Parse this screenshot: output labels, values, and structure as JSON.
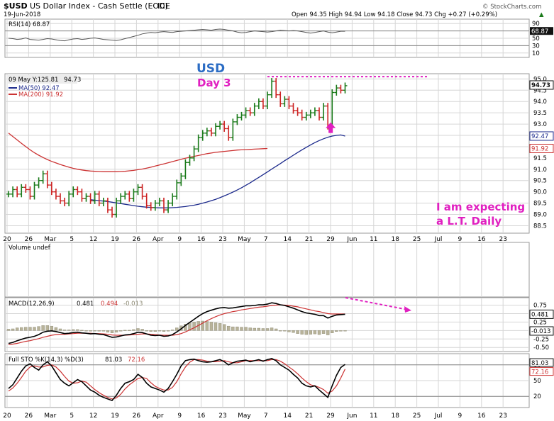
{
  "header": {
    "symbol": "$USD",
    "name": "US Dollar Index - Cash Settle (EOD)",
    "exchange": "ICE",
    "date": "19-Jun-2018",
    "ohlc_text": "Open 94.35  High 94.94  Low 94.18  Close 94.73  Chg +0.27 (+0.29%)",
    "trend_arrow": "▲",
    "watermark": "© StockCharts.com"
  },
  "colors": {
    "up": "#1a7a1a",
    "down": "#cc2222",
    "ma50": "#1c2a8c",
    "ma200": "#cc3333",
    "annotation_blue": "#2b6cc4",
    "annotation_magenta": "#e020c0",
    "macd": "#000000",
    "signal": "#cc3333",
    "histogram": "#b8b39a"
  },
  "chart_data": [
    {
      "type": "line",
      "name": "rsi_panel",
      "title": "RSI(14) 68.87",
      "ylim": [
        0,
        100
      ],
      "yticks": [
        "90",
        "70",
        "50",
        "30",
        "10"
      ],
      "current_label": "68.87",
      "values": [
        50,
        49,
        47,
        48,
        51,
        47,
        46,
        45,
        47,
        49,
        48,
        46,
        44,
        43,
        46,
        48,
        49,
        47,
        48,
        50,
        51,
        49,
        47,
        46,
        45,
        44,
        46,
        49,
        52,
        55,
        58,
        62,
        64,
        66,
        65,
        67,
        68,
        67,
        66,
        68,
        69,
        70,
        71,
        72,
        73,
        74,
        73,
        72,
        74,
        75,
        74,
        72,
        70,
        67,
        65,
        66,
        68,
        70,
        69,
        68,
        67,
        68,
        70,
        72,
        71,
        70,
        71,
        70,
        68,
        66,
        64,
        66,
        68,
        70,
        67,
        65,
        67,
        69,
        69
      ]
    },
    {
      "type": "line",
      "name": "price_panel",
      "title": "09 May Y:125.81",
      "close_label": "94.73",
      "legend": [
        {
          "name": "MA(50) 92.47",
          "color": "#1c2a8c"
        },
        {
          "name": "MA(200) 91.92",
          "color": "#cc3333"
        }
      ],
      "ylim": [
        88.2,
        95.2
      ],
      "yticks": [
        "95.0",
        "94.5",
        "94.0",
        "93.5",
        "93.0",
        "92.5",
        "92.0",
        "91.5",
        "91.0",
        "90.5",
        "90.0",
        "89.5",
        "89.0",
        "88.5"
      ],
      "right_labels": [
        "94.73",
        "92.47",
        "91.92"
      ],
      "x_ticks": [
        "20",
        "26",
        "Mar",
        "5",
        "12",
        "19",
        "26",
        "Apr",
        "9",
        "16",
        "23",
        "May",
        "7",
        "14",
        "21",
        "29",
        "Jun",
        "11",
        "18",
        "25",
        "Jul",
        "9",
        "16",
        "23"
      ],
      "closes": [
        89.9,
        90.1,
        89.9,
        90.2,
        90.1,
        89.8,
        90.3,
        90.5,
        90.8,
        90.3,
        90.0,
        89.8,
        89.6,
        89.5,
        89.9,
        90.1,
        90.0,
        89.7,
        89.8,
        89.6,
        89.9,
        89.5,
        89.6,
        89.2,
        89.0,
        89.6,
        89.8,
        89.9,
        89.7,
        90.0,
        90.2,
        89.8,
        89.4,
        89.3,
        89.5,
        89.6,
        89.2,
        89.5,
        89.8,
        90.4,
        90.7,
        91.3,
        91.5,
        91.9,
        92.4,
        92.6,
        92.7,
        92.6,
        92.9,
        93.0,
        92.8,
        92.4,
        93.1,
        93.3,
        93.4,
        93.6,
        93.5,
        93.8,
        94.0,
        93.8,
        94.3,
        94.9,
        94.3,
        93.9,
        94.1,
        93.8,
        93.6,
        93.5,
        93.3,
        93.4,
        93.5,
        93.6,
        93.3,
        93.8,
        92.9,
        94.4,
        94.6,
        94.5,
        94.7
      ],
      "ma50": [
        89.65,
        89.63,
        89.61,
        89.59,
        89.57,
        89.54,
        89.51,
        89.48,
        89.45,
        89.42,
        89.39,
        89.36,
        89.34,
        89.32,
        89.31,
        89.3,
        89.29,
        89.29,
        89.29,
        89.3,
        89.31,
        89.33,
        89.35,
        89.38,
        89.41,
        89.45,
        89.5,
        89.55,
        89.61,
        89.67,
        89.74,
        89.82,
        89.9,
        89.99,
        90.08,
        90.18,
        90.29,
        90.4,
        90.52,
        90.64,
        90.76,
        90.88,
        91.01,
        91.13,
        91.25,
        91.38,
        91.5,
        91.62,
        91.74,
        91.86,
        91.97,
        92.08,
        92.18,
        92.27,
        92.35,
        92.42,
        92.47,
        92.5,
        92.52,
        92.47
      ],
      "ma200": [
        92.6,
        92.45,
        92.3,
        92.15,
        92.0,
        91.86,
        91.73,
        91.62,
        91.52,
        91.43,
        91.35,
        91.28,
        91.21,
        91.15,
        91.09,
        91.04,
        91.0,
        90.97,
        90.94,
        90.92,
        90.91,
        90.9,
        90.89,
        90.89,
        90.89,
        90.89,
        90.9,
        90.91,
        90.93,
        90.95,
        90.98,
        91.01,
        91.05,
        91.09,
        91.14,
        91.19,
        91.24,
        91.29,
        91.34,
        91.39,
        91.44,
        91.49,
        91.53,
        91.57,
        91.61,
        91.65,
        91.69,
        91.72,
        91.75,
        91.77,
        91.79,
        91.81,
        91.83,
        91.85,
        91.86,
        91.87,
        91.88,
        91.89,
        91.9,
        91.91,
        91.92
      ],
      "resistance_level": 95.1,
      "annotations": {
        "title_line1": "USD",
        "title_line2": "Day 3",
        "note_line1": "I am expecting",
        "note_line2": "a L.T. Daily"
      }
    },
    {
      "type": "bar",
      "name": "volume_panel",
      "title": "Volume undef"
    },
    {
      "type": "area",
      "name": "macd_panel",
      "title_prefix": "MACD(12,26,9)",
      "macd_value": "0.481",
      "signal_value": "0.494",
      "hist_value": "-0.013",
      "ylim": [
        -0.6,
        0.95
      ],
      "yticks": [
        "0.75",
        "0.50",
        "0.25",
        "0.00",
        "-0.25",
        "-0.50"
      ],
      "right_labels": [
        "0.481",
        "-0.013"
      ],
      "macd": [
        -0.38,
        -0.35,
        -0.3,
        -0.26,
        -0.22,
        -0.2,
        -0.17,
        -0.12,
        -0.05,
        -0.02,
        -0.01,
        -0.03,
        -0.06,
        -0.09,
        -0.08,
        -0.06,
        -0.05,
        -0.07,
        -0.08,
        -0.1,
        -0.09,
        -0.11,
        -0.12,
        -0.16,
        -0.2,
        -0.19,
        -0.16,
        -0.13,
        -0.12,
        -0.09,
        -0.05,
        -0.06,
        -0.1,
        -0.14,
        -0.15,
        -0.14,
        -0.17,
        -0.16,
        -0.12,
        -0.04,
        0.05,
        0.15,
        0.24,
        0.33,
        0.42,
        0.5,
        0.56,
        0.6,
        0.64,
        0.67,
        0.68,
        0.66,
        0.67,
        0.69,
        0.71,
        0.73,
        0.73,
        0.74,
        0.76,
        0.76,
        0.78,
        0.82,
        0.8,
        0.76,
        0.74,
        0.7,
        0.66,
        0.61,
        0.56,
        0.52,
        0.5,
        0.48,
        0.44,
        0.44,
        0.37,
        0.42,
        0.46,
        0.47,
        0.48
      ],
      "signal": [
        -0.42,
        -0.4,
        -0.38,
        -0.35,
        -0.32,
        -0.3,
        -0.27,
        -0.24,
        -0.2,
        -0.17,
        -0.14,
        -0.12,
        -0.11,
        -0.11,
        -0.1,
        -0.09,
        -0.08,
        -0.08,
        -0.08,
        -0.08,
        -0.09,
        -0.09,
        -0.1,
        -0.11,
        -0.13,
        -0.14,
        -0.14,
        -0.14,
        -0.13,
        -0.12,
        -0.11,
        -0.1,
        -0.1,
        -0.11,
        -0.12,
        -0.13,
        -0.14,
        -0.14,
        -0.14,
        -0.12,
        -0.09,
        -0.04,
        0.02,
        0.08,
        0.15,
        0.22,
        0.29,
        0.35,
        0.41,
        0.46,
        0.5,
        0.53,
        0.56,
        0.58,
        0.61,
        0.63,
        0.65,
        0.67,
        0.69,
        0.7,
        0.72,
        0.74,
        0.75,
        0.76,
        0.75,
        0.74,
        0.72,
        0.7,
        0.67,
        0.64,
        0.61,
        0.58,
        0.56,
        0.53,
        0.5,
        0.49,
        0.49,
        0.49,
        0.49
      ]
    },
    {
      "type": "line",
      "name": "stochastic_panel",
      "title_prefix": "Full STO %K(14,3) %D(3)",
      "k_value": "81.03",
      "d_value": "72.16",
      "ylim": [
        0,
        100
      ],
      "yticks": [
        "80",
        "50",
        "20"
      ],
      "right_labels": [
        "81.03",
        "72.16"
      ],
      "k": [
        35,
        42,
        55,
        68,
        78,
        82,
        75,
        70,
        80,
        86,
        78,
        65,
        52,
        45,
        40,
        46,
        52,
        48,
        40,
        32,
        28,
        22,
        18,
        15,
        12,
        22,
        35,
        45,
        48,
        52,
        62,
        56,
        45,
        38,
        35,
        32,
        28,
        35,
        48,
        62,
        78,
        88,
        90,
        91,
        88,
        86,
        85,
        86,
        88,
        90,
        86,
        80,
        84,
        87,
        88,
        89,
        86,
        88,
        90,
        87,
        90,
        92,
        88,
        80,
        75,
        70,
        62,
        55,
        45,
        40,
        38,
        40,
        32,
        25,
        18,
        40,
        60,
        75,
        81
      ],
      "d": [
        30,
        36,
        45,
        56,
        68,
        76,
        78,
        76,
        76,
        79,
        80,
        76,
        68,
        58,
        49,
        45,
        46,
        49,
        47,
        40,
        33,
        27,
        22,
        18,
        15,
        17,
        24,
        34,
        42,
        48,
        54,
        56,
        54,
        46,
        39,
        35,
        32,
        32,
        37,
        48,
        63,
        76,
        85,
        90,
        90,
        89,
        87,
        86,
        86,
        87,
        88,
        86,
        84,
        84,
        86,
        88,
        88,
        88,
        88,
        88,
        88,
        90,
        90,
        87,
        82,
        76,
        70,
        63,
        55,
        48,
        42,
        40,
        37,
        33,
        26,
        30,
        40,
        55,
        72
      ]
    }
  ]
}
